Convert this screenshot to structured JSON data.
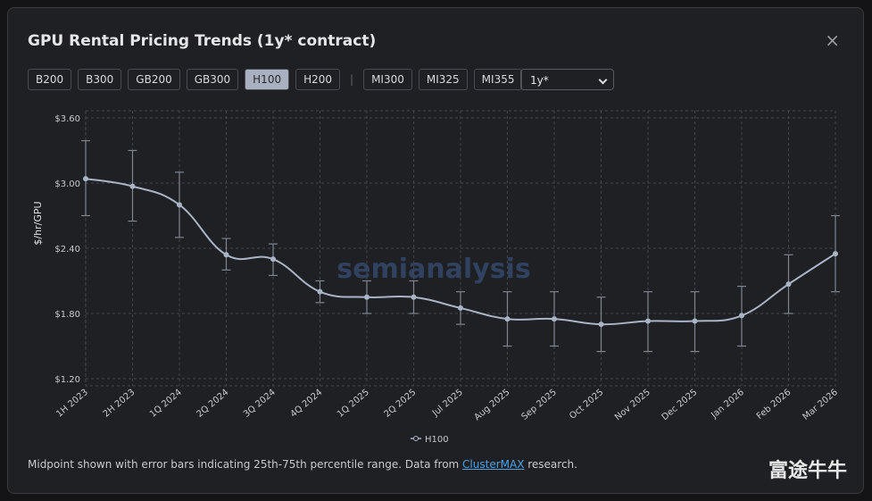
{
  "chart_data": {
    "type": "line",
    "title": "GPU Rental Pricing Trends (1y* contract)",
    "y_label": "$/hr/GPU",
    "categories": [
      "1H 2023",
      "2H 2023",
      "1Q 2024",
      "2Q 2024",
      "3Q 2024",
      "4Q 2024",
      "1Q 2025",
      "2Q 2025",
      "Jul 2025",
      "Aug 2025",
      "Sep 2025",
      "Oct 2025",
      "Nov 2025",
      "Dec 2025",
      "Jan 2026",
      "Feb 2026",
      "Mar 2026"
    ],
    "series": [
      {
        "name": "H100",
        "color": "#a9b4c6",
        "values": [
          3.04,
          2.97,
          2.8,
          2.34,
          2.3,
          2.0,
          1.95,
          1.95,
          1.85,
          1.75,
          1.75,
          1.7,
          1.73,
          1.73,
          1.78,
          2.07,
          2.35
        ],
        "low": [
          2.7,
          2.65,
          2.5,
          2.2,
          2.15,
          1.9,
          1.8,
          1.8,
          1.7,
          1.5,
          1.5,
          1.45,
          1.45,
          1.45,
          1.5,
          1.8,
          2.0
        ],
        "high": [
          3.39,
          3.3,
          3.1,
          2.49,
          2.44,
          2.1,
          2.1,
          2.1,
          2.0,
          2.0,
          2.0,
          1.95,
          2.0,
          2.0,
          2.05,
          2.34,
          2.7
        ]
      }
    ],
    "ylim": [
      1.2,
      3.6
    ],
    "yticks": [
      {
        "value": 1.2,
        "label": "$1.20"
      },
      {
        "value": 1.8,
        "label": "$1.80"
      },
      {
        "value": 2.4,
        "label": "$2.40"
      },
      {
        "value": 3.0,
        "label": "$3.00"
      },
      {
        "value": 3.6,
        "label": "$3.60"
      }
    ],
    "grid": true,
    "watermark": "semianalysis"
  },
  "buttons": [
    "B200",
    "B300",
    "GB200",
    "GB300",
    "H100",
    "H200",
    "|",
    "MI300",
    "MI325",
    "MI355"
  ],
  "active_button": "H100",
  "select": "1y*",
  "close": "×",
  "footnote": {
    "before": "Midpoint shown with error bars indicating 25th-75th percentile range. Data from ",
    "link": "ClusterMAX",
    "after": " research."
  },
  "brand": "富途牛牛"
}
